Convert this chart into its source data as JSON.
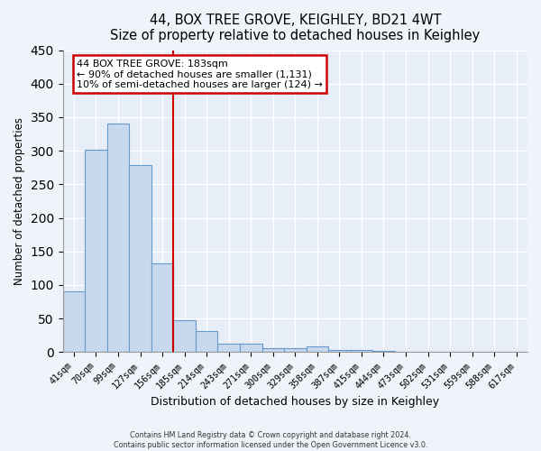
{
  "title": "44, BOX TREE GROVE, KEIGHLEY, BD21 4WT",
  "subtitle": "Size of property relative to detached houses in Keighley",
  "xlabel": "Distribution of detached houses by size in Keighley",
  "ylabel": "Number of detached properties",
  "bar_labels": [
    "41sqm",
    "70sqm",
    "99sqm",
    "127sqm",
    "156sqm",
    "185sqm",
    "214sqm",
    "243sqm",
    "271sqm",
    "300sqm",
    "329sqm",
    "358sqm",
    "387sqm",
    "415sqm",
    "444sqm",
    "473sqm",
    "502sqm",
    "531sqm",
    "559sqm",
    "588sqm",
    "617sqm"
  ],
  "bar_values": [
    91,
    302,
    340,
    279,
    132,
    47,
    31,
    13,
    13,
    6,
    6,
    9,
    3,
    3,
    2,
    1,
    0,
    0,
    1,
    0,
    1
  ],
  "bar_color": "#c8d9ee",
  "bar_edge_color": "#6699cc",
  "vline_color": "#cc0000",
  "annotation_title": "44 BOX TREE GROVE: 183sqm",
  "annotation_line1": "← 90% of detached houses are smaller (1,131)",
  "annotation_line2": "10% of semi-detached houses are larger (124) →",
  "annotation_box_color": "#cc0000",
  "ylim": [
    0,
    450
  ],
  "yticks": [
    0,
    50,
    100,
    150,
    200,
    250,
    300,
    350,
    400,
    450
  ],
  "footer1": "Contains HM Land Registry data © Crown copyright and database right 2024.",
  "footer2": "Contains public sector information licensed under the Open Government Licence v3.0.",
  "fig_bg_color": "#f0f4fa",
  "plot_bg_color": "#e8eef8"
}
